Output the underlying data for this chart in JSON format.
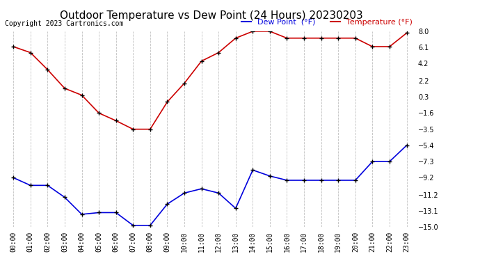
{
  "title": "Outdoor Temperature vs Dew Point (24 Hours) 20230203",
  "copyright": "Copyright 2023 Cartronics.com",
  "x_labels": [
    "00:00",
    "01:00",
    "02:00",
    "03:00",
    "04:00",
    "05:00",
    "06:00",
    "07:00",
    "08:00",
    "09:00",
    "10:00",
    "11:00",
    "12:00",
    "13:00",
    "14:00",
    "15:00",
    "16:00",
    "17:00",
    "18:00",
    "19:00",
    "20:00",
    "21:00",
    "22:00",
    "23:00"
  ],
  "temp_color": "#0000dd",
  "dew_color": "#cc0000",
  "legend_dew_label": "Dew Point  (°F)",
  "legend_temp_label": "Temperature (°F)",
  "temperature": [
    -9.2,
    -10.1,
    -10.1,
    -11.5,
    -13.5,
    -13.3,
    -13.3,
    -14.8,
    -14.8,
    -12.3,
    -11.0,
    -10.5,
    -11.0,
    -12.8,
    -8.3,
    -9.0,
    -9.5,
    -9.5,
    -9.5,
    -9.5,
    -9.5,
    -7.3,
    -7.3,
    -5.4
  ],
  "dew_point": [
    6.2,
    5.5,
    3.5,
    1.3,
    0.5,
    -1.6,
    -2.5,
    -3.5,
    -3.5,
    -0.3,
    1.9,
    4.5,
    5.5,
    7.2,
    8.0,
    8.0,
    7.2,
    7.2,
    7.2,
    7.2,
    7.2,
    6.2,
    6.2,
    7.8
  ],
  "ylim": [
    -15.0,
    8.0
  ],
  "yticks_right": [
    8.0,
    6.1,
    4.2,
    2.2,
    0.3,
    -1.6,
    -3.5,
    -5.4,
    -7.3,
    -9.2,
    -11.2,
    -13.1,
    -15.0
  ],
  "bg_color": "#ffffff",
  "grid_color": "#c0c0c0",
  "title_fontsize": 11,
  "tick_fontsize": 7,
  "copyright_fontsize": 7,
  "legend_fontsize": 8
}
